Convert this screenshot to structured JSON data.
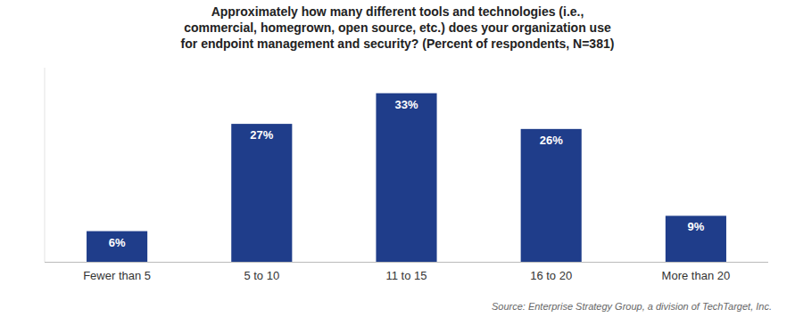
{
  "chart_data": {
    "type": "bar",
    "title": "Approximately how many different tools and technologies (i.e.,\ncommercial, homegrown, open source, etc.) does your organization use\nfor endpoint management and security? (Percent of respondents, N=381)",
    "categories": [
      "Fewer than 5",
      "5 to 10",
      "11 to 15",
      "16 to 20",
      "More than 20"
    ],
    "values": [
      6,
      27,
      33,
      26,
      9
    ],
    "value_labels": [
      "6%",
      "27%",
      "33%",
      "26%",
      "9%"
    ],
    "color": "#1F3D8A",
    "ylim": [
      0,
      38
    ],
    "data_labels": true,
    "tick_labels": "x",
    "grid": false,
    "annotations": [
      "Source: Enterprise Strategy Group, a division of TechTarget, Inc."
    ]
  }
}
